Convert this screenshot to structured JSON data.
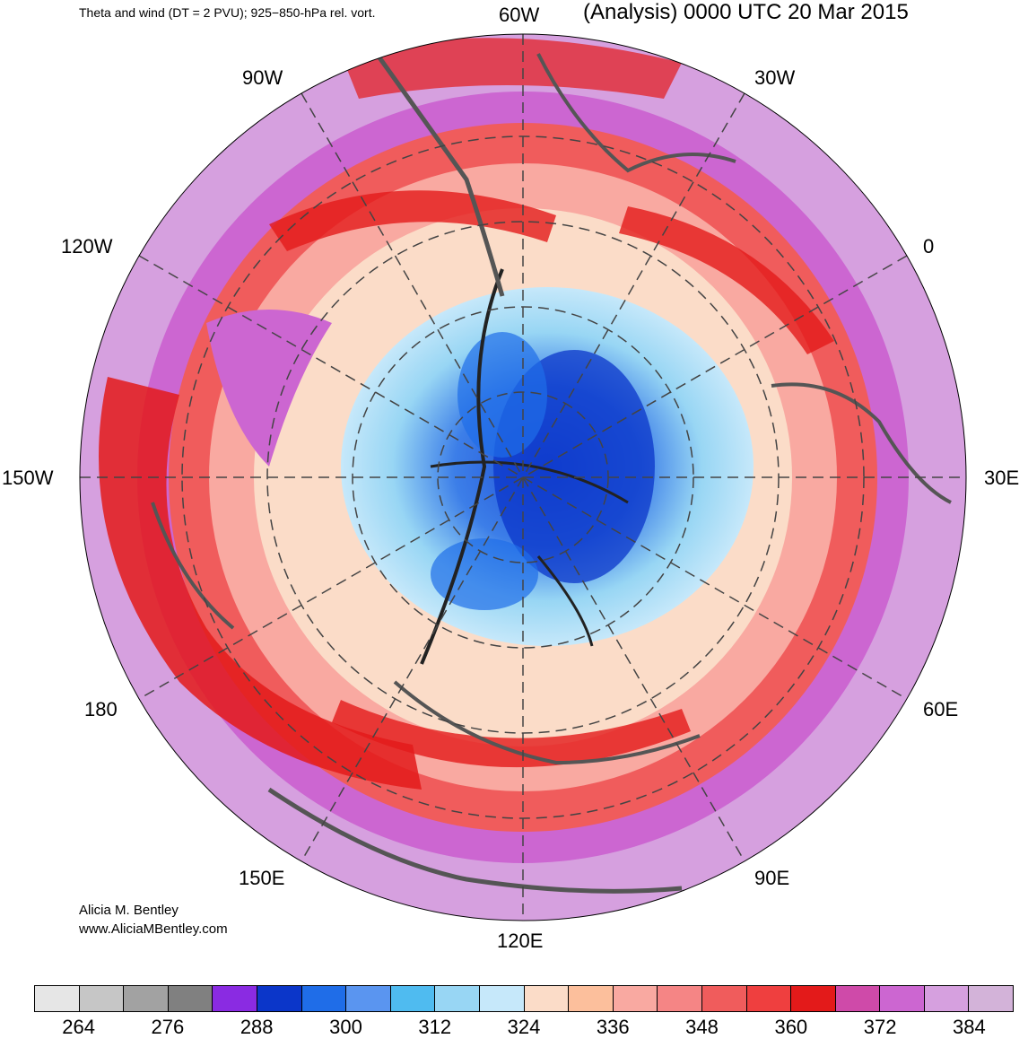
{
  "header": {
    "left_title": "Theta and wind (DT = 2 PVU); 925−850-hPa rel. vort.",
    "right_title": "(Analysis) 0000 UTC 20 Mar 2015"
  },
  "longitude_labels": {
    "lon_60w": "60W",
    "lon_30w": "30W",
    "lon_0": "0",
    "lon_30e": "30E",
    "lon_60e": "60E",
    "lon_90e": "90E",
    "lon_120e": "120E",
    "lon_150e": "150E",
    "lon_180": "180",
    "lon_150w": "150W",
    "lon_120w": "120W",
    "lon_90w": "90W"
  },
  "credit": {
    "name": "Alicia M. Bentley",
    "url": "www.AliciaMBentley.com"
  },
  "colorbar": {
    "colors": [
      "#e6e6e6",
      "#c6c6c6",
      "#a2a2a2",
      "#808080",
      "#8a2be2",
      "#0b36c9",
      "#1f6de8",
      "#5a95f0",
      "#4fbbf0",
      "#98d6f4",
      "#c6e8fa",
      "#fbdcc8",
      "#fcbf9c",
      "#f9a9a1",
      "#f58585",
      "#f05c5c",
      "#ef3f3f",
      "#e31a1a",
      "#cf4aa9",
      "#cc66d1",
      "#d6a0df",
      "#d3b3d9"
    ],
    "labels": [
      "264",
      "276",
      "288",
      "300",
      "312",
      "324",
      "336",
      "348",
      "360",
      "372",
      "384"
    ]
  }
}
